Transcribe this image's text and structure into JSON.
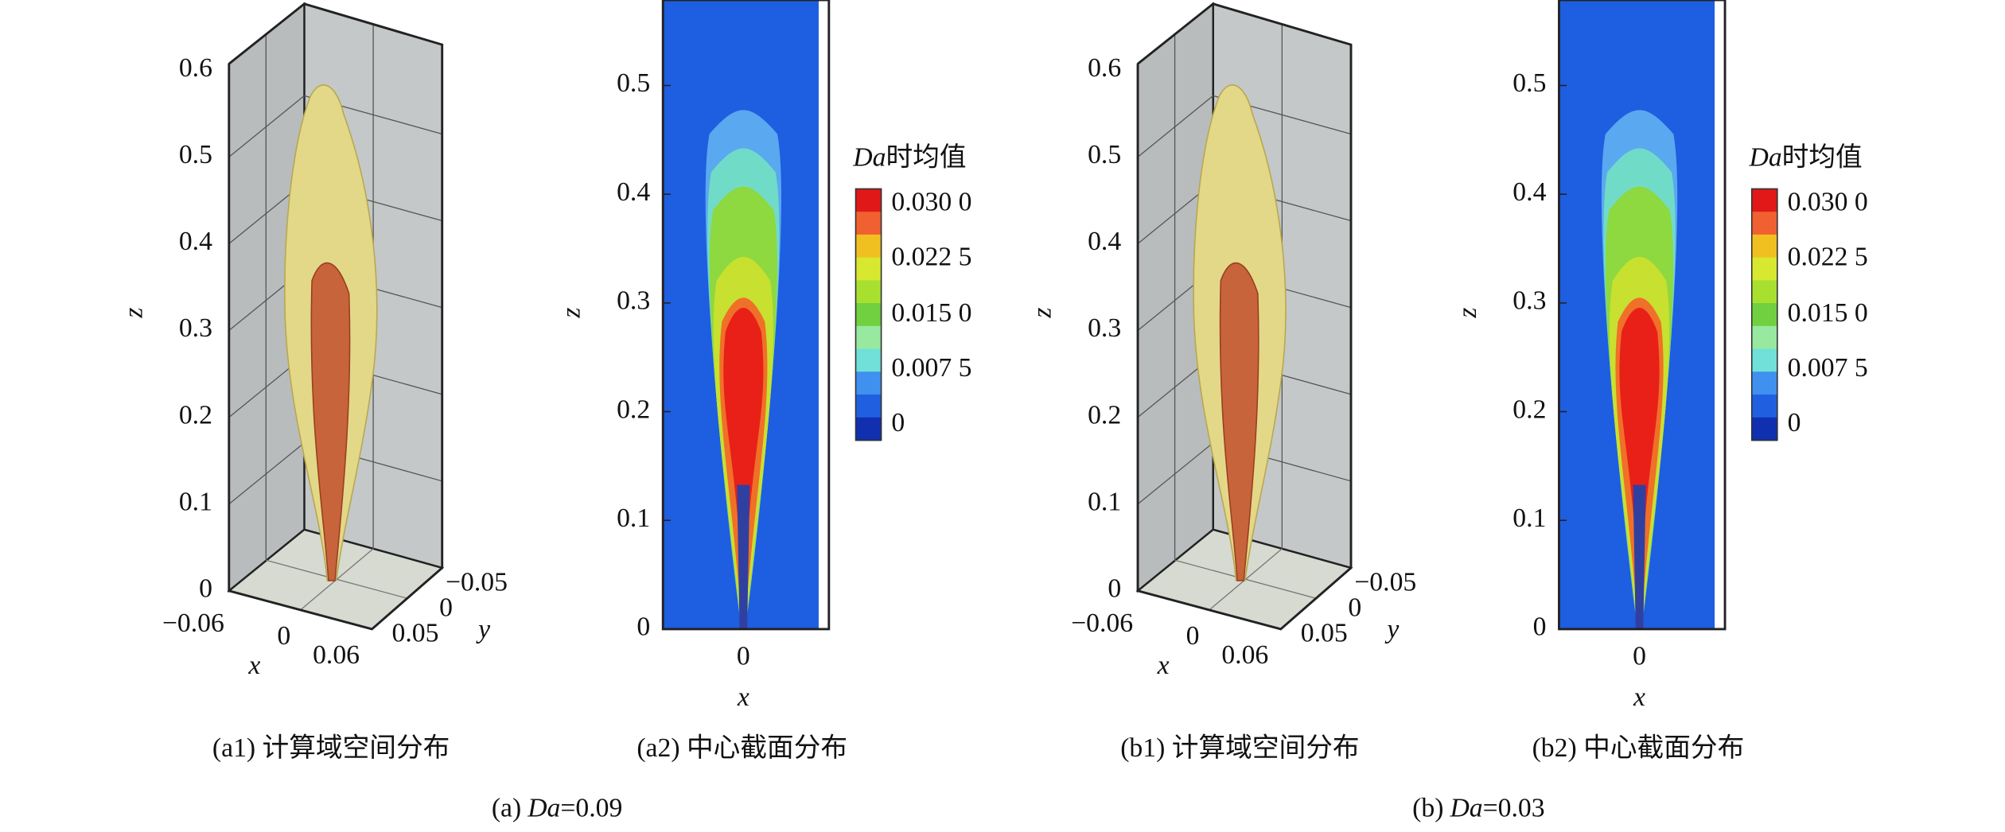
{
  "panels": [
    {
      "kind": "3d",
      "caption": "(a1) 计算域空间分布",
      "z_label": "z",
      "x_label": "x",
      "y_label": "y",
      "z_ticks": [
        "0",
        "0.1",
        "0.2",
        "0.3",
        "0.4",
        "0.5",
        "0.6"
      ],
      "x_ticks": [
        "−0.06",
        "0",
        "0.06"
      ],
      "y_ticks": [
        "−0.05",
        "0",
        "0.05"
      ]
    },
    {
      "kind": "2d",
      "caption": "(a2) 中心截面分布",
      "z_label": "z",
      "x_label": "x",
      "z_ticks": [
        "0",
        "0.1",
        "0.2",
        "0.3",
        "0.4",
        "0.5"
      ],
      "x_ticks": [
        "0"
      ],
      "colorbar": {
        "title_var": "Da",
        "title": "时均值",
        "labels": [
          "0.030 0",
          "0.022 5",
          "0.015 0",
          "0.007 5",
          "0"
        ]
      }
    },
    {
      "kind": "3d",
      "caption": "(b1) 计算域空间分布",
      "z_label": "z",
      "x_label": "x",
      "y_label": "y",
      "z_ticks": [
        "0",
        "0.1",
        "0.2",
        "0.3",
        "0.4",
        "0.5",
        "0.6"
      ],
      "x_ticks": [
        "−0.06",
        "0",
        "0.06"
      ],
      "y_ticks": [
        "−0.05",
        "0",
        "0.05"
      ]
    },
    {
      "kind": "2d",
      "caption": "(b2) 中心截面分布",
      "z_label": "z",
      "x_label": "x",
      "z_ticks": [
        "0",
        "0.1",
        "0.2",
        "0.3",
        "0.4",
        "0.5"
      ],
      "x_ticks": [
        "0"
      ],
      "colorbar": {
        "title_var": "Da",
        "title": "时均值",
        "labels": [
          "0.030 0",
          "0.022 5",
          "0.015 0",
          "0.007 5",
          "0"
        ]
      }
    }
  ],
  "groups": [
    {
      "prefix": "(a)",
      "var": "Da",
      "suffix": "=0.09"
    },
    {
      "prefix": "(b)",
      "var": "Da",
      "suffix": "=0.03"
    }
  ]
}
